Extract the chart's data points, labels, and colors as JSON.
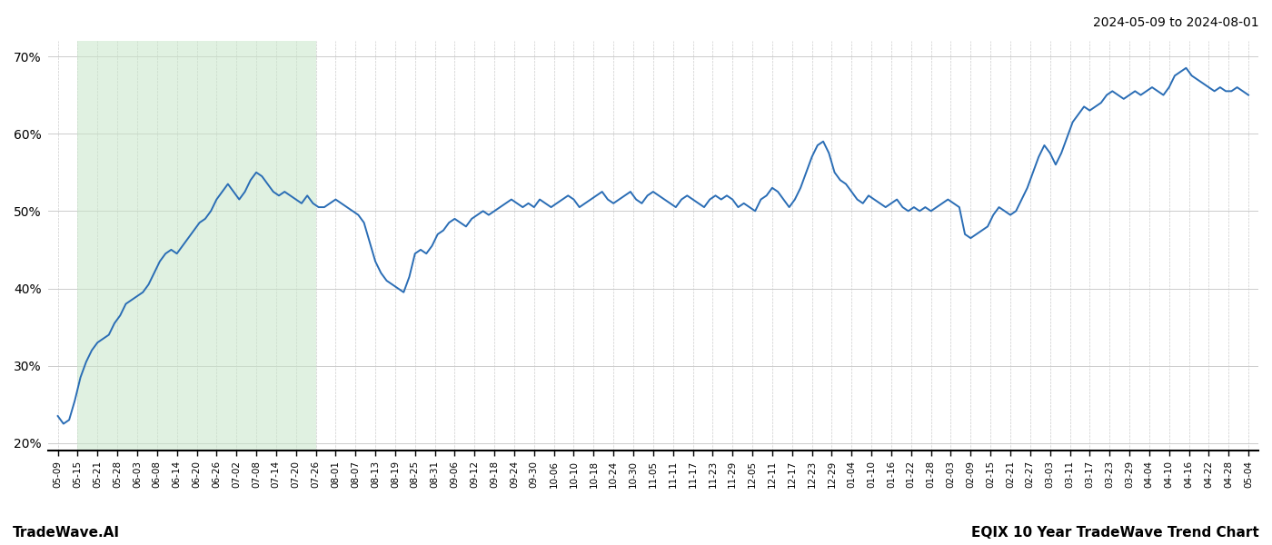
{
  "title_right": "2024-05-09 to 2024-08-01",
  "footer_left": "TradeWave.AI",
  "footer_right": "EQIX 10 Year TradeWave Trend Chart",
  "ylim": [
    19,
    72
  ],
  "yticks": [
    20,
    30,
    40,
    50,
    60,
    70
  ],
  "line_color": "#2a6db5",
  "line_width": 1.4,
  "shade_color": "#c8e6c9",
  "shade_alpha": 0.55,
  "background_color": "#ffffff",
  "grid_color": "#cccccc",
  "xtick_labels": [
    "05-09",
    "05-15",
    "05-21",
    "05-28",
    "06-03",
    "06-08",
    "06-14",
    "06-20",
    "06-26",
    "07-02",
    "07-08",
    "07-14",
    "07-20",
    "07-26",
    "08-01",
    "08-07",
    "08-13",
    "08-19",
    "08-25",
    "08-31",
    "09-06",
    "09-12",
    "09-18",
    "09-24",
    "09-30",
    "10-06",
    "10-10",
    "10-18",
    "10-24",
    "10-30",
    "11-05",
    "11-11",
    "11-17",
    "11-23",
    "11-29",
    "12-05",
    "12-11",
    "12-17",
    "12-23",
    "12-29",
    "01-04",
    "01-10",
    "01-16",
    "01-22",
    "01-28",
    "02-03",
    "02-09",
    "02-15",
    "02-21",
    "02-27",
    "03-03",
    "03-11",
    "03-17",
    "03-23",
    "03-29",
    "04-04",
    "04-10",
    "04-16",
    "04-22",
    "04-28",
    "05-04"
  ],
  "y_values": [
    23.5,
    22.5,
    23.0,
    25.5,
    28.5,
    30.5,
    32.0,
    33.0,
    33.5,
    34.0,
    35.5,
    36.5,
    38.0,
    38.5,
    39.0,
    39.5,
    40.5,
    42.0,
    43.5,
    44.5,
    45.0,
    44.5,
    45.5,
    46.5,
    47.5,
    48.5,
    49.0,
    50.0,
    51.5,
    52.5,
    53.5,
    52.5,
    51.5,
    52.5,
    54.0,
    55.0,
    54.5,
    53.5,
    52.5,
    52.0,
    52.5,
    52.0,
    51.5,
    51.0,
    52.0,
    51.0,
    50.5,
    50.5,
    51.0,
    51.5,
    51.0,
    50.5,
    50.0,
    49.5,
    48.5,
    46.0,
    43.5,
    42.0,
    41.0,
    40.5,
    40.0,
    39.5,
    41.5,
    44.5,
    45.0,
    44.5,
    45.5,
    47.0,
    47.5,
    48.5,
    49.0,
    48.5,
    48.0,
    49.0,
    49.5,
    50.0,
    49.5,
    50.0,
    50.5,
    51.0,
    51.5,
    51.0,
    50.5,
    51.0,
    50.5,
    51.5,
    51.0,
    50.5,
    51.0,
    51.5,
    52.0,
    51.5,
    50.5,
    51.0,
    51.5,
    52.0,
    52.5,
    51.5,
    51.0,
    51.5,
    52.0,
    52.5,
    51.5,
    51.0,
    52.0,
    52.5,
    52.0,
    51.5,
    51.0,
    50.5,
    51.5,
    52.0,
    51.5,
    51.0,
    50.5,
    51.5,
    52.0,
    51.5,
    52.0,
    51.5,
    50.5,
    51.0,
    50.5,
    50.0,
    51.5,
    52.0,
    53.0,
    52.5,
    51.5,
    50.5,
    51.5,
    53.0,
    55.0,
    57.0,
    58.5,
    59.0,
    57.5,
    55.0,
    54.0,
    53.5,
    52.5,
    51.5,
    51.0,
    52.0,
    51.5,
    51.0,
    50.5,
    51.0,
    51.5,
    50.5,
    50.0,
    50.5,
    50.0,
    50.5,
    50.0,
    50.5,
    51.0,
    51.5,
    51.0,
    50.5,
    47.0,
    46.5,
    47.0,
    47.5,
    48.0,
    49.5,
    50.5,
    50.0,
    49.5,
    50.0,
    51.5,
    53.0,
    55.0,
    57.0,
    58.5,
    57.5,
    56.0,
    57.5,
    59.5,
    61.5,
    62.5,
    63.5,
    63.0,
    63.5,
    64.0,
    65.0,
    65.5,
    65.0,
    64.5,
    65.0,
    65.5,
    65.0,
    65.5,
    66.0,
    65.5,
    65.0,
    66.0,
    67.5,
    68.0,
    68.5,
    67.5,
    67.0,
    66.5,
    66.0,
    65.5,
    66.0,
    65.5,
    65.5,
    66.0,
    65.5,
    65.0
  ],
  "shade_x_start_label": "05-15",
  "shade_x_end_label": "07-26"
}
